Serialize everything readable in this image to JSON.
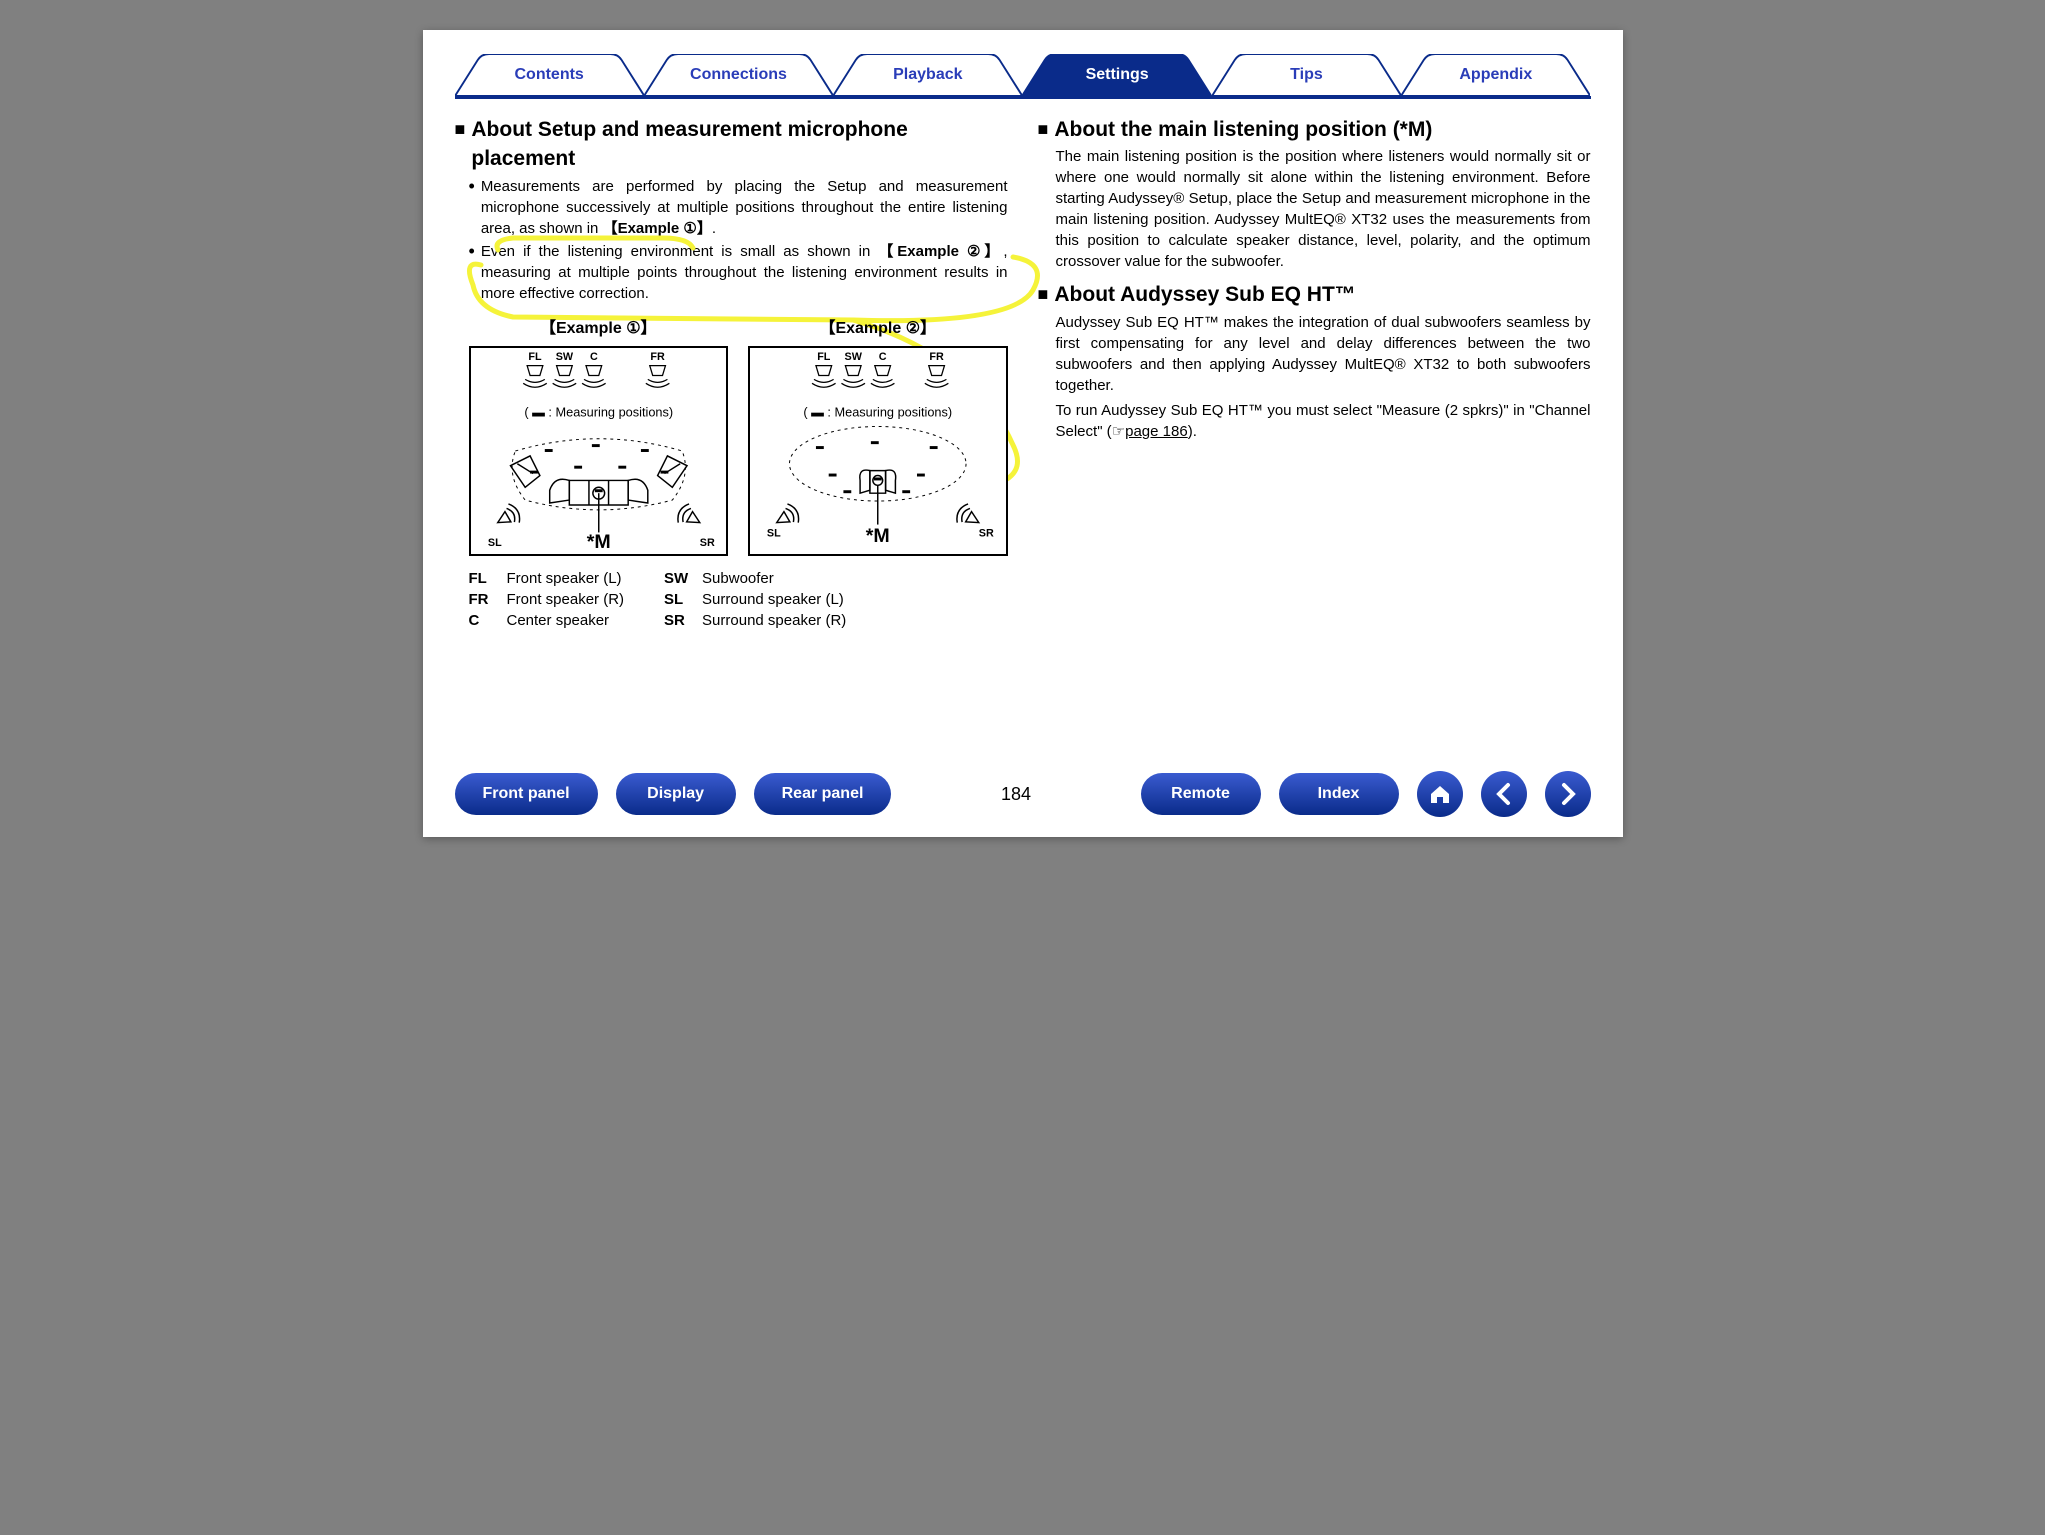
{
  "colors": {
    "brand": "#0a2b8a",
    "tab_text": "#2a3db8",
    "highlight": "#f5f33a",
    "page_bg": "#ffffff",
    "outer_bg": "#808080"
  },
  "tabs": {
    "items": [
      "Contents",
      "Connections",
      "Playback",
      "Settings",
      "Tips",
      "Appendix"
    ],
    "active_index": 3
  },
  "left": {
    "heading": "About Setup and measurement microphone placement",
    "bullet1_pre": "Measurements are performed by placing the Setup and measurement microphone successively at multiple positions throughout the entire listening area, as shown in ",
    "bullet1_ref": "【Example ①】",
    "bullet2_pre": "Even if the listening environment is small as shown in ",
    "bullet2_ref": "【Example ②】",
    "bullet2_post": ", measuring at multiple points throughout the listening environment results in more effective correction.",
    "example1_title": "【Example ①】",
    "example2_title": "【Example ②】",
    "measuring_label": "( ▬ : Measuring positions)",
    "speaker_labels": {
      "FL": "FL",
      "SW": "SW",
      "C": "C",
      "FR": "FR",
      "SL": "SL",
      "SR": "SR"
    },
    "m_label": "*M",
    "legend": {
      "col1": [
        {
          "abbr": "FL",
          "desc": "Front speaker (L)"
        },
        {
          "abbr": "FR",
          "desc": "Front speaker (R)"
        },
        {
          "abbr": "C",
          "desc": "Center speaker"
        }
      ],
      "col2": [
        {
          "abbr": "SW",
          "desc": "Subwoofer"
        },
        {
          "abbr": "SL",
          "desc": "Surround speaker (L)"
        },
        {
          "abbr": "SR",
          "desc": "Surround speaker (R)"
        }
      ]
    }
  },
  "right": {
    "heading1": "About the main listening position (*M)",
    "body1": "The main listening position is the position where listeners would normally sit or where one would normally sit alone within the listening environment. Before starting Audyssey® Setup, place the Setup and measurement microphone in the main listening position. Audyssey MultEQ® XT32 uses the measurements from this position to calculate speaker distance, level, polarity, and the optimum crossover value for the subwoofer.",
    "heading2": "About Audyssey Sub EQ HT™",
    "body2a": "Audyssey Sub EQ HT™ makes the integration of dual subwoofers seamless by first compensating for any level and delay differences between the two subwoofers and then applying Audyssey MultEQ® XT32 to both subwoofers together.",
    "body2b_pre": "To run Audyssey Sub EQ HT™ you must select \"Measure (2 spkrs)\" in \"Channel Select\" (☞",
    "body2b_link": "page 186",
    "body2b_post": ")."
  },
  "footer": {
    "buttons_left": [
      "Front panel",
      "Display",
      "Rear panel"
    ],
    "page_number": "184",
    "buttons_right": [
      "Remote",
      "Index"
    ]
  },
  "annotation": {
    "stroke": "#f5f33a",
    "stroke_width": 4
  },
  "diagram_style": {
    "box_border": "#000000",
    "speaker_icon_stroke": "#000000",
    "measuring_dash": "2,3",
    "ellipse_dash": "3,4"
  }
}
